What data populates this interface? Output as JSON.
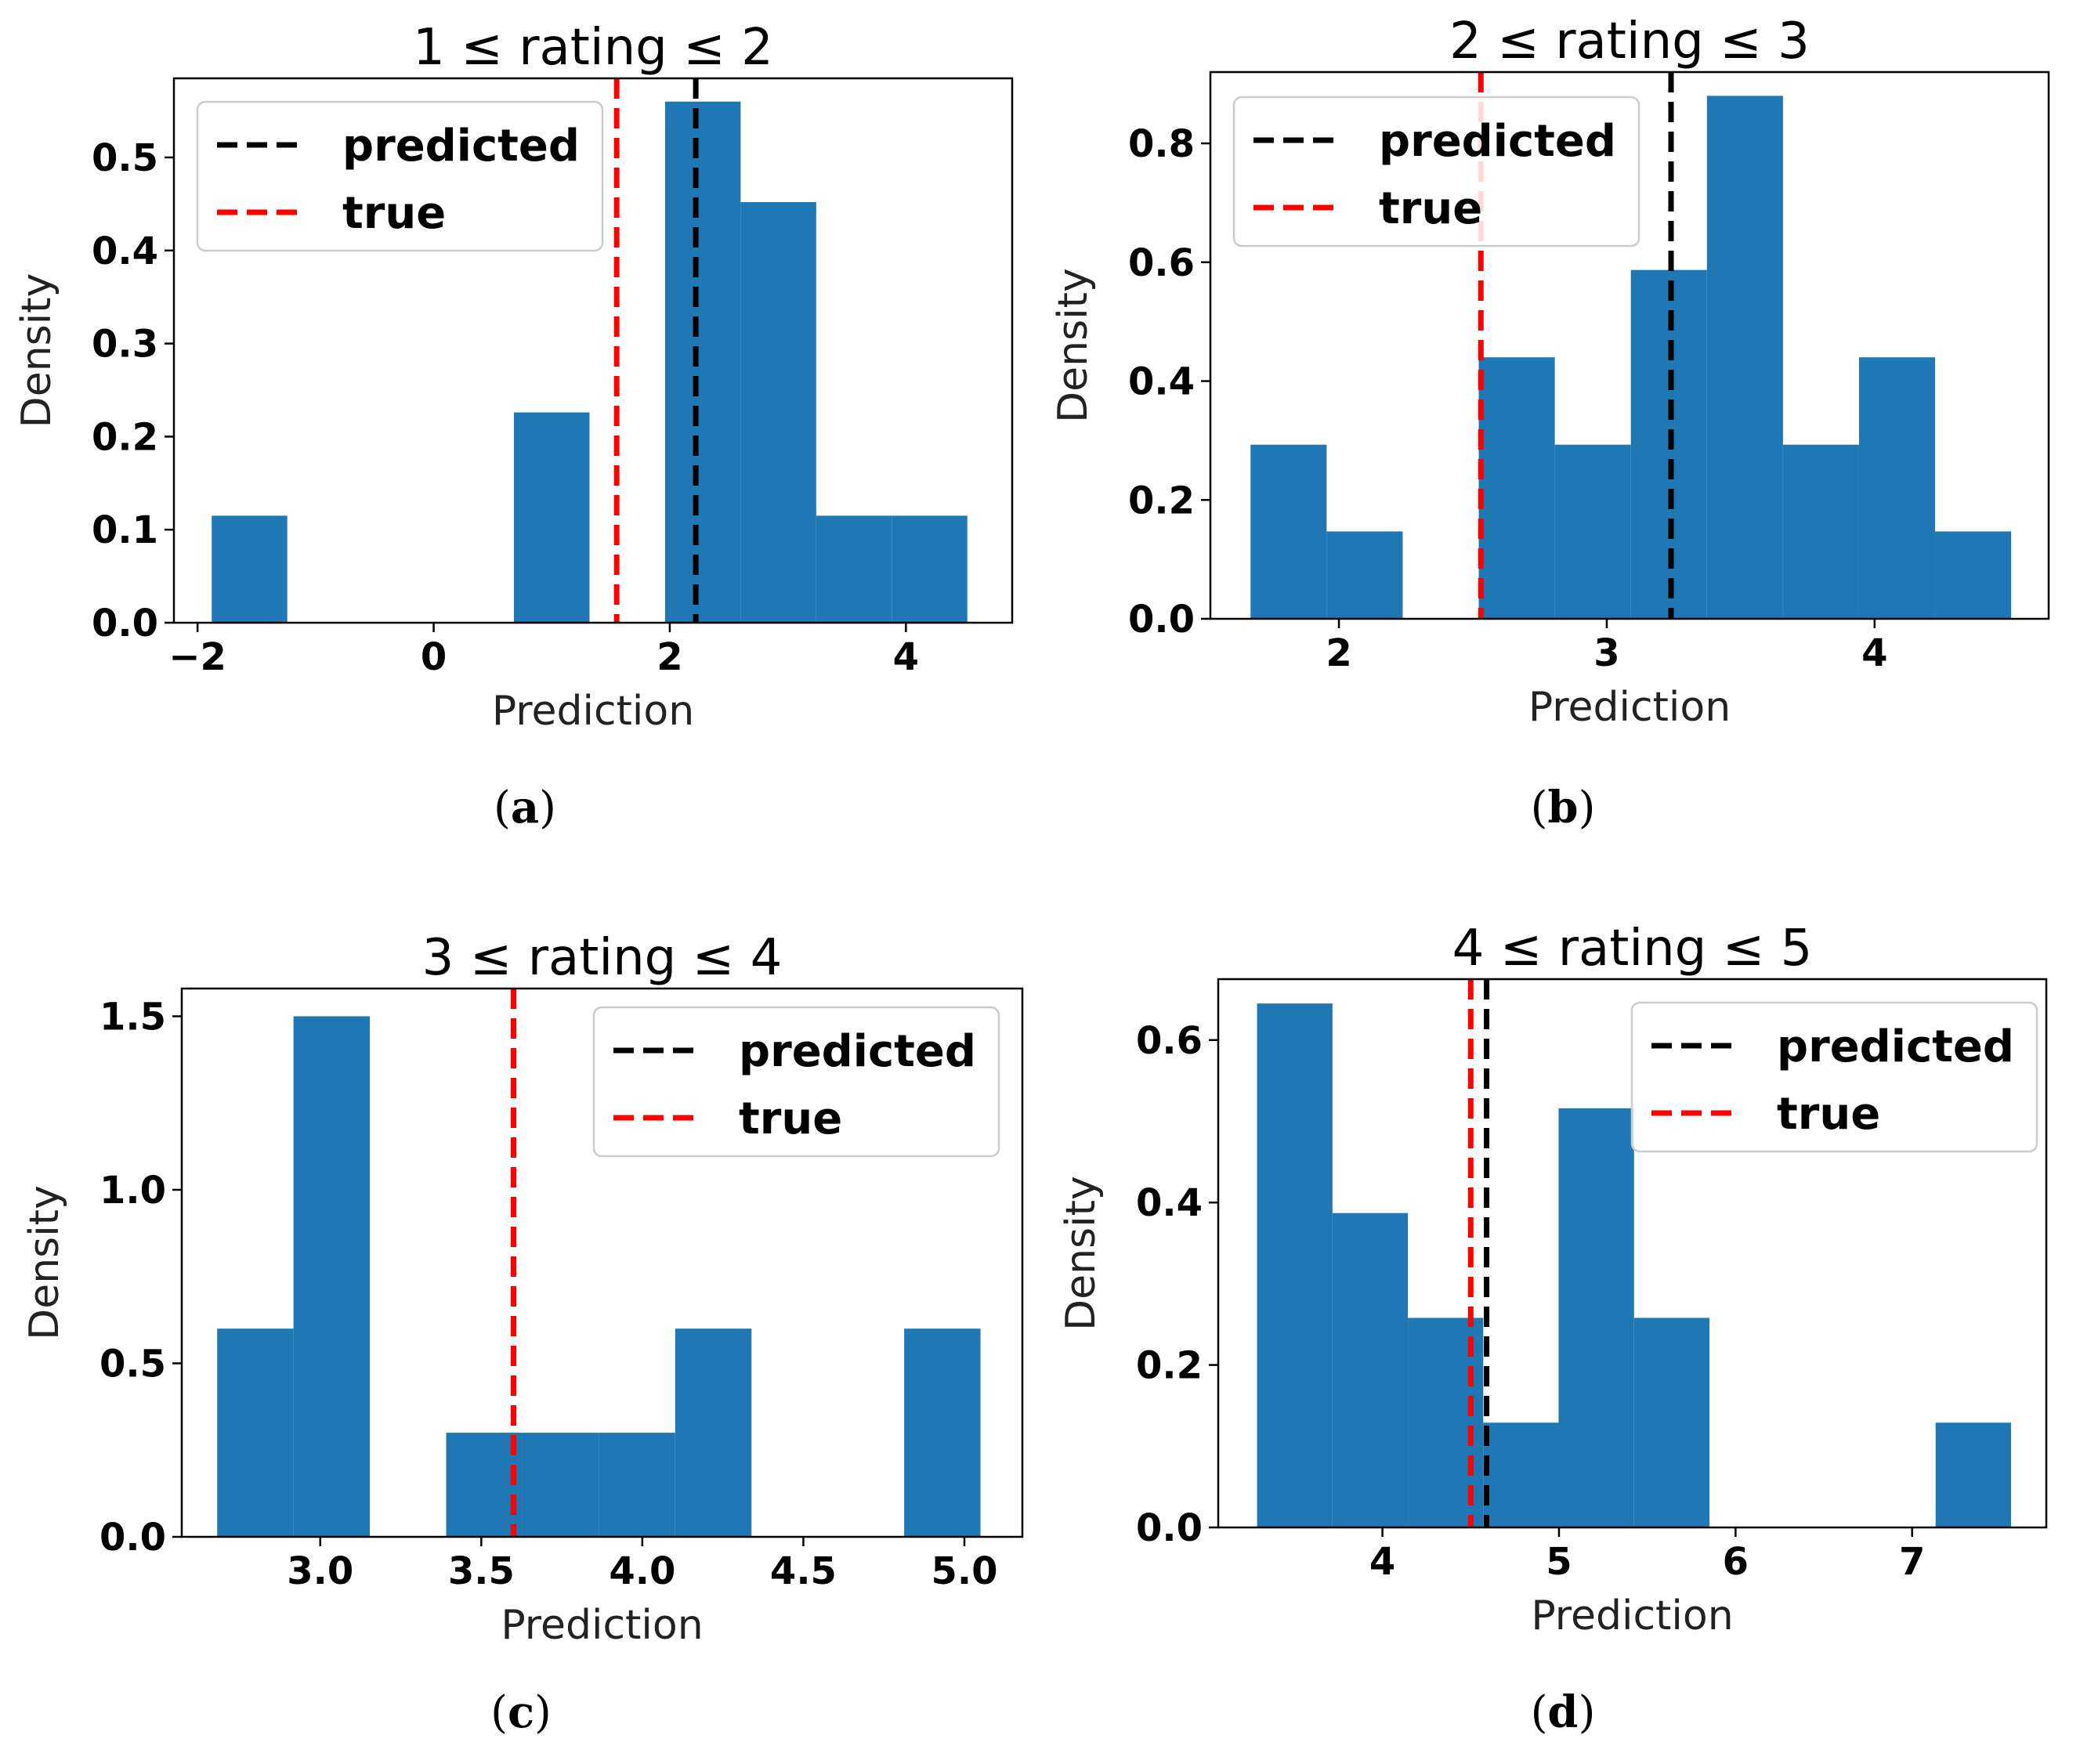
{
  "chart_data": [
    {
      "type": "bar",
      "panel": "a",
      "caption": "a",
      "title": "1 ≤ rating ≤ 2",
      "xlabel": "Prediction",
      "ylabel": "Density",
      "xlim": [
        -2.2,
        4.9
      ],
      "ylim": [
        0,
        0.585
      ],
      "xticks": [
        {
          "value": -2,
          "label": "−2"
        },
        {
          "value": 0,
          "label": "0"
        },
        {
          "value": 2,
          "label": "2"
        },
        {
          "value": 4,
          "label": "4"
        }
      ],
      "yticks": [
        {
          "value": 0.0,
          "label": "0.0"
        },
        {
          "value": 0.1,
          "label": "0.1"
        },
        {
          "value": 0.2,
          "label": "0.2"
        },
        {
          "value": 0.3,
          "label": "0.3"
        },
        {
          "value": 0.4,
          "label": "0.4"
        },
        {
          "value": 0.5,
          "label": "0.5"
        }
      ],
      "bin_edges": [
        -1.88,
        -1.24,
        -0.6,
        0.04,
        0.68,
        1.32,
        1.96,
        2.6,
        3.24,
        3.88,
        4.52
      ],
      "values": [
        0.115,
        0,
        0,
        0,
        0.226,
        0,
        0.56,
        0.452,
        0.115,
        0.115
      ],
      "bar_color": "#1f77b4",
      "vlines": [
        {
          "name": "predicted",
          "x": 2.22,
          "color": "#000000"
        },
        {
          "name": "true",
          "x": 1.55,
          "color": "#ff0000"
        }
      ],
      "legend": {
        "position": "upper-left",
        "entries": [
          {
            "label": "predicted",
            "color": "#000000"
          },
          {
            "label": "true",
            "color": "#ff0000"
          }
        ]
      }
    },
    {
      "type": "bar",
      "panel": "b",
      "caption": "b",
      "title": "2 ≤ rating ≤ 3",
      "xlabel": "Prediction",
      "ylabel": "Density",
      "xlim": [
        1.52,
        4.65
      ],
      "ylim": [
        0,
        0.92
      ],
      "xticks": [
        {
          "value": 2,
          "label": "2"
        },
        {
          "value": 3,
          "label": "3"
        },
        {
          "value": 4,
          "label": "4"
        }
      ],
      "yticks": [
        {
          "value": 0.0,
          "label": "0.0"
        },
        {
          "value": 0.2,
          "label": "0.2"
        },
        {
          "value": 0.4,
          "label": "0.4"
        },
        {
          "value": 0.6,
          "label": "0.6"
        },
        {
          "value": 0.8,
          "label": "0.8"
        }
      ],
      "bin_edges": [
        1.67,
        1.954,
        2.238,
        2.522,
        2.806,
        3.09,
        3.374,
        3.658,
        3.942,
        4.226,
        4.51
      ],
      "values": [
        0.293,
        0.147,
        0,
        0.44,
        0.293,
        0.587,
        0.88,
        0.293,
        0.44,
        0.147
      ],
      "bar_color": "#1f77b4",
      "vlines": [
        {
          "name": "predicted",
          "x": 3.24,
          "color": "#000000"
        },
        {
          "name": "true",
          "x": 2.53,
          "color": "#ff0000"
        }
      ],
      "legend": {
        "position": "upper-left",
        "entries": [
          {
            "label": "predicted",
            "color": "#000000"
          },
          {
            "label": "true",
            "color": "#ff0000"
          }
        ]
      }
    },
    {
      "type": "bar",
      "panel": "c",
      "caption": "c",
      "title": "3 ≤ rating ≤ 4",
      "xlabel": "Prediction",
      "ylabel": "Density",
      "xlim": [
        2.57,
        5.18
      ],
      "ylim": [
        0,
        1.58
      ],
      "xticks": [
        {
          "value": 3.0,
          "label": "3.0"
        },
        {
          "value": 3.5,
          "label": "3.5"
        },
        {
          "value": 4.0,
          "label": "4.0"
        },
        {
          "value": 4.5,
          "label": "4.5"
        },
        {
          "value": 5.0,
          "label": "5.0"
        }
      ],
      "yticks": [
        {
          "value": 0.0,
          "label": "0.0"
        },
        {
          "value": 0.5,
          "label": "0.5"
        },
        {
          "value": 1.0,
          "label": "1.0"
        },
        {
          "value": 1.5,
          "label": "1.5"
        }
      ],
      "bin_edges": [
        2.68,
        2.917,
        3.154,
        3.391,
        3.628,
        3.865,
        4.102,
        4.339,
        4.576,
        4.813,
        5.05
      ],
      "values": [
        0.6,
        1.5,
        0,
        0.3,
        0.3,
        0.3,
        0.6,
        0,
        0,
        0.6
      ],
      "bar_color": "#1f77b4",
      "vlines": [
        {
          "name": "predicted",
          "x": 3.6,
          "color": "#000000"
        },
        {
          "name": "true",
          "x": 3.6,
          "color": "#ff0000"
        }
      ],
      "legend": {
        "position": "upper-right",
        "entries": [
          {
            "label": "predicted",
            "color": "#000000"
          },
          {
            "label": "true",
            "color": "#ff0000"
          }
        ]
      }
    },
    {
      "type": "bar",
      "panel": "d",
      "caption": "d",
      "title": "4 ≤ rating ≤ 5",
      "xlabel": "Prediction",
      "ylabel": "Density",
      "xlim": [
        3.07,
        7.76
      ],
      "ylim": [
        0,
        0.675
      ],
      "xticks": [
        {
          "value": 4,
          "label": "4"
        },
        {
          "value": 5,
          "label": "5"
        },
        {
          "value": 6,
          "label": "6"
        },
        {
          "value": 7,
          "label": "7"
        }
      ],
      "yticks": [
        {
          "value": 0.0,
          "label": "0.0"
        },
        {
          "value": 0.2,
          "label": "0.2"
        },
        {
          "value": 0.4,
          "label": "0.4"
        },
        {
          "value": 0.6,
          "label": "0.6"
        }
      ],
      "bin_edges": [
        3.29,
        3.717,
        4.144,
        4.571,
        4.998,
        5.425,
        5.852,
        6.279,
        6.706,
        7.133,
        7.56
      ],
      "values": [
        0.645,
        0.387,
        0.258,
        0.129,
        0.516,
        0.258,
        0,
        0,
        0,
        0.129
      ],
      "bar_color": "#1f77b4",
      "vlines": [
        {
          "name": "predicted",
          "x": 4.59,
          "color": "#000000"
        },
        {
          "name": "true",
          "x": 4.5,
          "color": "#ff0000"
        }
      ],
      "legend": {
        "position": "upper-right",
        "entries": [
          {
            "label": "predicted",
            "color": "#000000"
          },
          {
            "label": "true",
            "color": "#ff0000"
          }
        ]
      }
    }
  ]
}
